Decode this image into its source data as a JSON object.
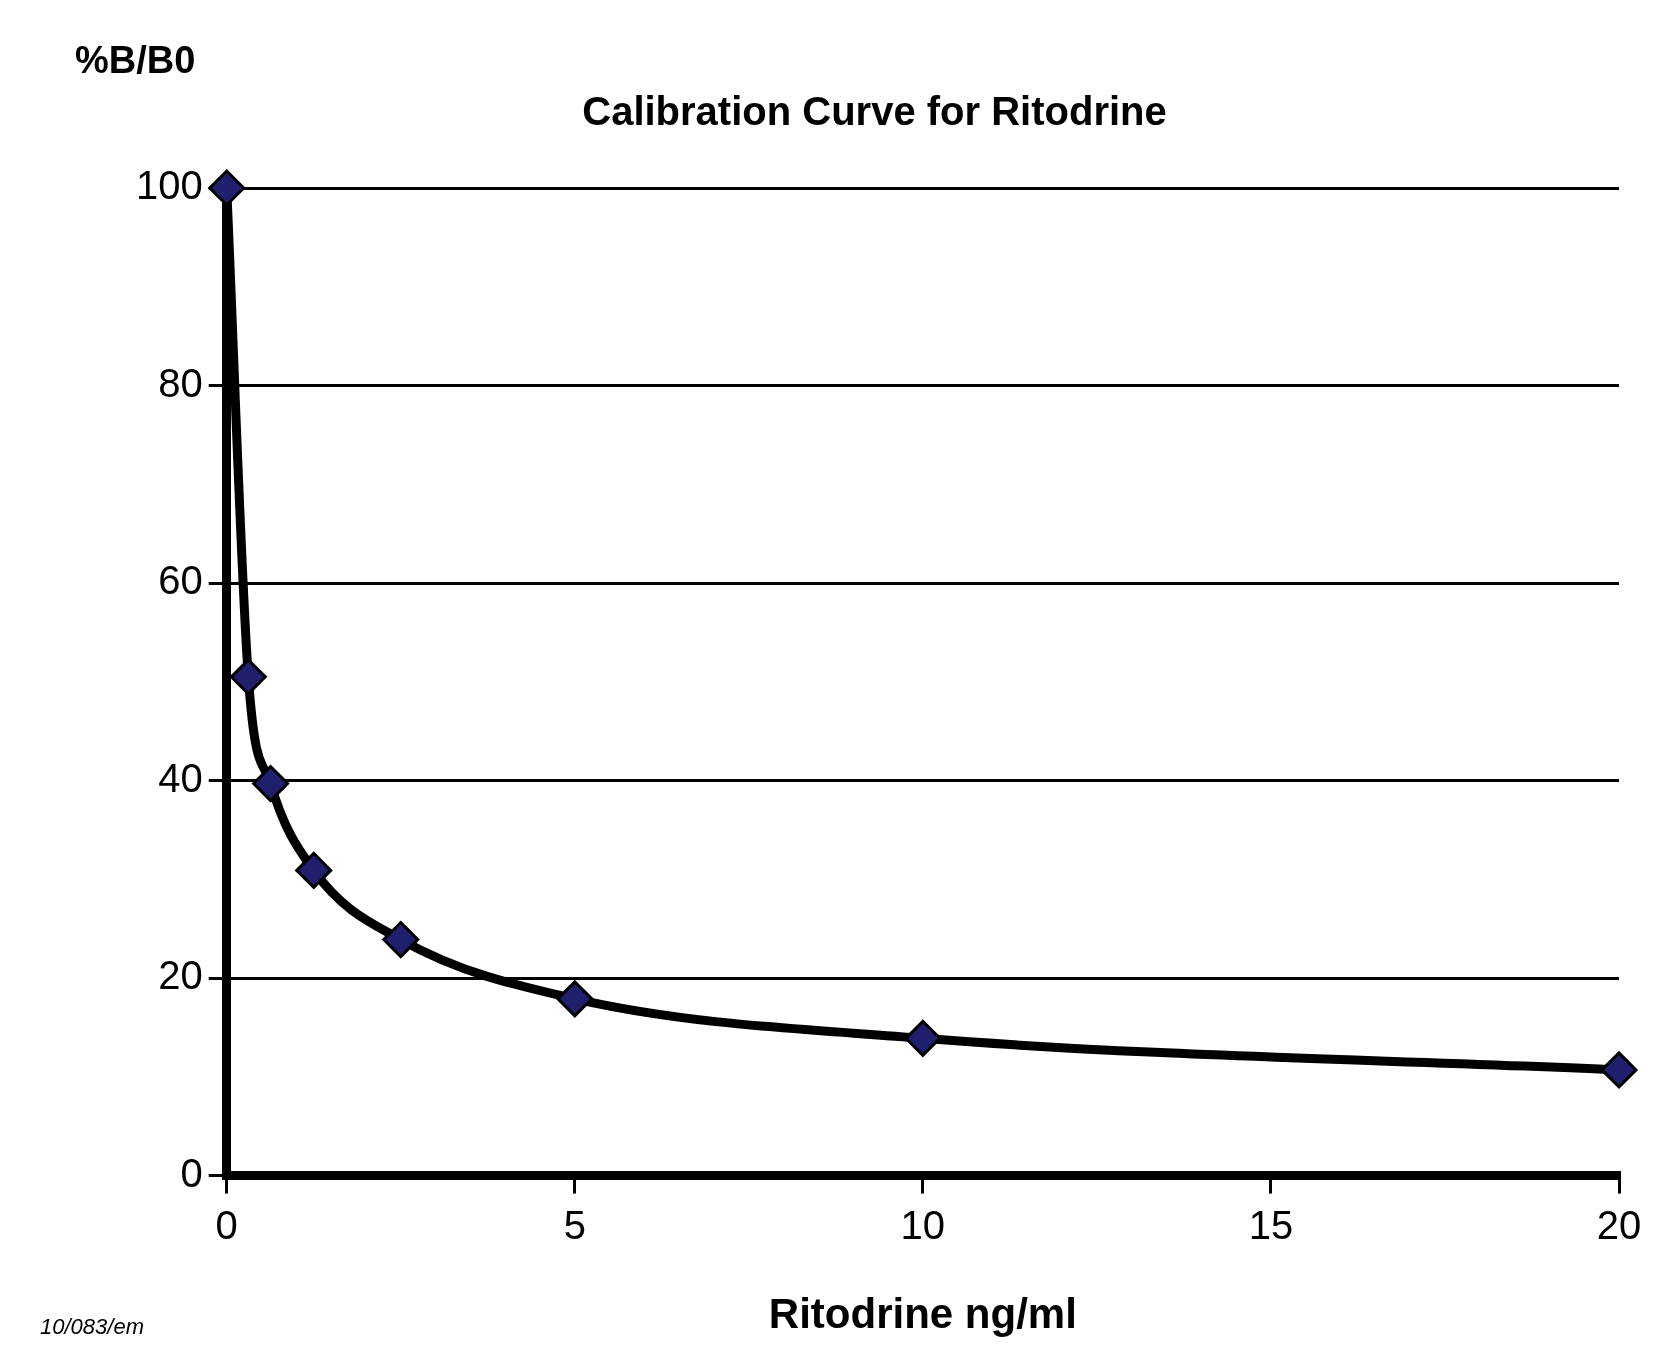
{
  "chart_data": {
    "type": "line",
    "title": "Calibration Curve for Ritodrine",
    "xlabel": "Ritodrine ng/ml",
    "ylabel": "%B/B0",
    "x": [
      0,
      0.31,
      0.63,
      1.25,
      2.5,
      5,
      10,
      20
    ],
    "series": [
      {
        "color": "#1f1f6e",
        "values": [
          100,
          50.5,
          39.7,
          30.9,
          23.9,
          17.9,
          13.9,
          10.7
        ]
      }
    ],
    "xlim": [
      0,
      20
    ],
    "xticks": [
      0,
      5,
      10,
      15,
      20
    ],
    "ylim": [
      0,
      100
    ],
    "yticks": [
      0,
      20,
      40,
      60,
      80,
      100
    ],
    "grid": "y",
    "legend": false,
    "marker": "diamond",
    "line_style": "solid",
    "annotations": [
      "10/083/em"
    ]
  }
}
